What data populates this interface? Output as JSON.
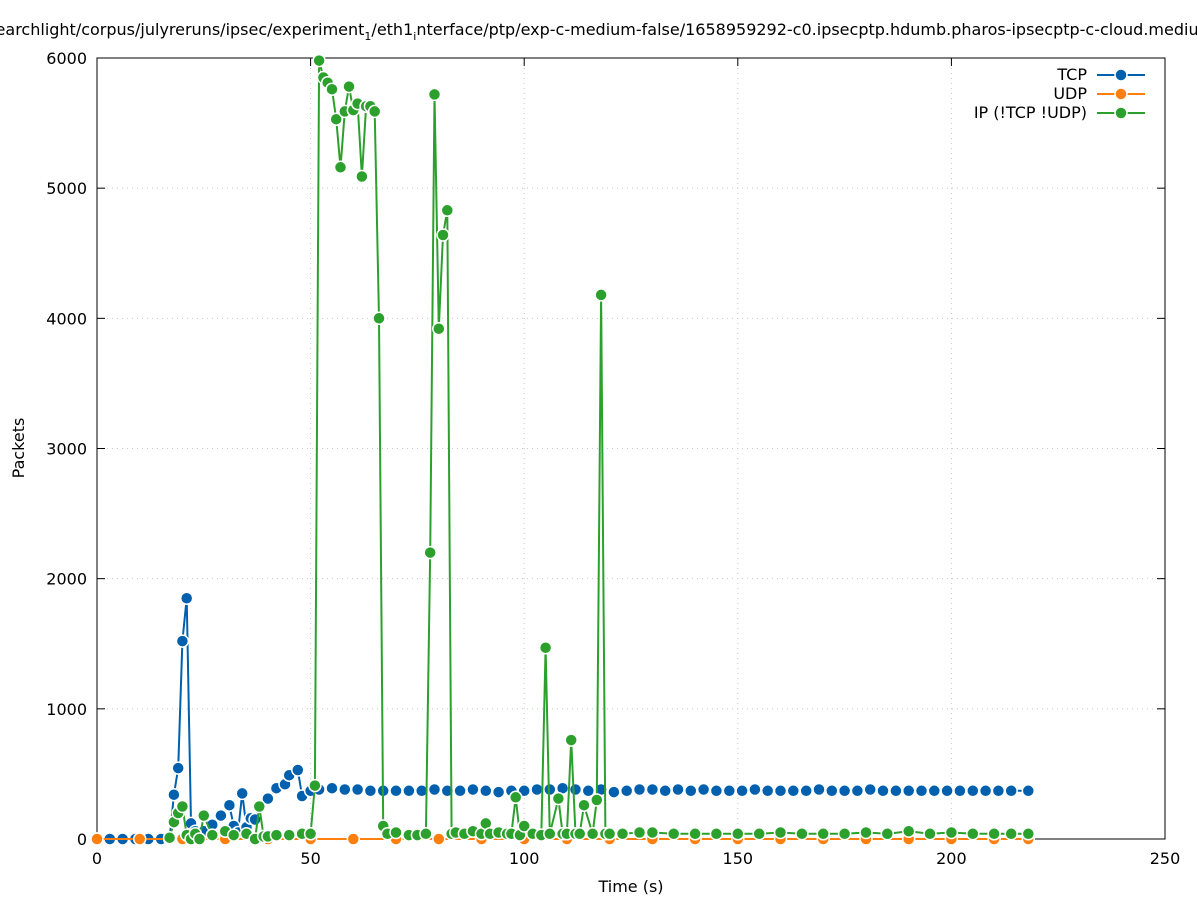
{
  "chart_data": {
    "type": "line",
    "title": "/searchlight/corpus/julyreruns/ipsec/experiment",
    "title_sub": "1",
    "title_tail": "/eth1",
    "title_sub2": "i",
    "title_tail2": "nterface/ptp/exp-c-medium-false/1658959292-c0.ipsecptp.hdumb.pharos-ipsecptp-c-cloud.medium",
    "xlabel": "Time (s)",
    "ylabel": "Packets",
    "xlim": [
      0,
      250
    ],
    "ylim": [
      0,
      6000
    ],
    "xticks": [
      "0",
      "50",
      "100",
      "150",
      "200",
      "250"
    ],
    "yticks": [
      "0",
      "1000",
      "2000",
      "3000",
      "4000",
      "5000",
      "6000"
    ],
    "grid": true,
    "legend_position": "top-right",
    "series": [
      {
        "name": "TCP",
        "color": "#0060ad",
        "points": [
          [
            0,
            0
          ],
          [
            3,
            0
          ],
          [
            6,
            0
          ],
          [
            9,
            0
          ],
          [
            12,
            0
          ],
          [
            15,
            0
          ],
          [
            17,
            0
          ],
          [
            18,
            340
          ],
          [
            19,
            545
          ],
          [
            20,
            1520
          ],
          [
            21,
            1850
          ],
          [
            22,
            120
          ],
          [
            23,
            60
          ],
          [
            24,
            20
          ],
          [
            25,
            60
          ],
          [
            27,
            110
          ],
          [
            29,
            180
          ],
          [
            31,
            260
          ],
          [
            32,
            100
          ],
          [
            33,
            50
          ],
          [
            34,
            350
          ],
          [
            35,
            90
          ],
          [
            36,
            160
          ],
          [
            37,
            150
          ],
          [
            38,
            250
          ],
          [
            40,
            310
          ],
          [
            42,
            390
          ],
          [
            44,
            420
          ],
          [
            45,
            490
          ],
          [
            47,
            530
          ],
          [
            48,
            330
          ],
          [
            50,
            370
          ],
          [
            52,
            380
          ],
          [
            55,
            390
          ],
          [
            58,
            380
          ],
          [
            61,
            380
          ],
          [
            64,
            370
          ],
          [
            67,
            370
          ],
          [
            70,
            370
          ],
          [
            73,
            370
          ],
          [
            76,
            370
          ],
          [
            79,
            380
          ],
          [
            82,
            370
          ],
          [
            85,
            370
          ],
          [
            88,
            380
          ],
          [
            91,
            370
          ],
          [
            94,
            360
          ],
          [
            97,
            370
          ],
          [
            100,
            370
          ],
          [
            103,
            380
          ],
          [
            106,
            380
          ],
          [
            109,
            390
          ],
          [
            112,
            380
          ],
          [
            115,
            370
          ],
          [
            118,
            380
          ],
          [
            121,
            360
          ],
          [
            124,
            370
          ],
          [
            127,
            380
          ],
          [
            130,
            380
          ],
          [
            133,
            370
          ],
          [
            136,
            380
          ],
          [
            139,
            370
          ],
          [
            142,
            380
          ],
          [
            145,
            370
          ],
          [
            148,
            370
          ],
          [
            151,
            370
          ],
          [
            154,
            380
          ],
          [
            157,
            370
          ],
          [
            160,
            370
          ],
          [
            163,
            370
          ],
          [
            166,
            370
          ],
          [
            169,
            380
          ],
          [
            172,
            370
          ],
          [
            175,
            370
          ],
          [
            178,
            370
          ],
          [
            181,
            380
          ],
          [
            184,
            370
          ],
          [
            187,
            370
          ],
          [
            190,
            370
          ],
          [
            193,
            370
          ],
          [
            196,
            370
          ],
          [
            199,
            370
          ],
          [
            202,
            370
          ],
          [
            205,
            370
          ],
          [
            208,
            370
          ],
          [
            211,
            370
          ],
          [
            214,
            370
          ],
          [
            218,
            370
          ]
        ]
      },
      {
        "name": "UDP",
        "color": "#ff7f0e",
        "points": [
          [
            0,
            0
          ],
          [
            10,
            0
          ],
          [
            20,
            0
          ],
          [
            30,
            0
          ],
          [
            40,
            0
          ],
          [
            50,
            0
          ],
          [
            60,
            0
          ],
          [
            70,
            0
          ],
          [
            80,
            0
          ],
          [
            90,
            0
          ],
          [
            100,
            0
          ],
          [
            110,
            0
          ],
          [
            120,
            0
          ],
          [
            130,
            0
          ],
          [
            140,
            0
          ],
          [
            150,
            0
          ],
          [
            160,
            0
          ],
          [
            170,
            0
          ],
          [
            180,
            0
          ],
          [
            190,
            0
          ],
          [
            200,
            0
          ],
          [
            210,
            0
          ],
          [
            218,
            0
          ]
        ]
      },
      {
        "name": "IP (!TCP  !UDP)",
        "color": "#2ca02c",
        "points": [
          [
            17,
            10
          ],
          [
            18,
            130
          ],
          [
            19,
            200
          ],
          [
            20,
            250
          ],
          [
            21,
            30
          ],
          [
            22,
            0
          ],
          [
            23,
            40
          ],
          [
            24,
            0
          ],
          [
            25,
            180
          ],
          [
            27,
            30
          ],
          [
            30,
            60
          ],
          [
            32,
            30
          ],
          [
            35,
            40
          ],
          [
            37,
            0
          ],
          [
            38,
            250
          ],
          [
            39,
            20
          ],
          [
            40,
            20
          ],
          [
            42,
            30
          ],
          [
            45,
            30
          ],
          [
            48,
            40
          ],
          [
            50,
            40
          ],
          [
            51,
            410
          ],
          [
            52,
            5980
          ],
          [
            53,
            5850
          ],
          [
            54,
            5810
          ],
          [
            55,
            5760
          ],
          [
            56,
            5530
          ],
          [
            57,
            5160
          ],
          [
            58,
            5590
          ],
          [
            59,
            5780
          ],
          [
            60,
            5600
          ],
          [
            61,
            5650
          ],
          [
            62,
            5090
          ],
          [
            63,
            5630
          ],
          [
            64,
            5630
          ],
          [
            65,
            5590
          ],
          [
            66,
            4000
          ],
          [
            67,
            100
          ],
          [
            68,
            40
          ],
          [
            70,
            50
          ],
          [
            73,
            30
          ],
          [
            75,
            30
          ],
          [
            77,
            40
          ],
          [
            78,
            2200
          ],
          [
            79,
            5720
          ],
          [
            80,
            3920
          ],
          [
            81,
            4640
          ],
          [
            82,
            4830
          ],
          [
            83,
            40
          ],
          [
            84,
            50
          ],
          [
            86,
            40
          ],
          [
            88,
            60
          ],
          [
            90,
            40
          ],
          [
            91,
            120
          ],
          [
            92,
            40
          ],
          [
            94,
            50
          ],
          [
            96,
            40
          ],
          [
            97,
            40
          ],
          [
            98,
            320
          ],
          [
            99,
            30
          ],
          [
            100,
            100
          ],
          [
            102,
            40
          ],
          [
            104,
            30
          ],
          [
            105,
            1470
          ],
          [
            106,
            40
          ],
          [
            108,
            310
          ],
          [
            109,
            40
          ],
          [
            110,
            40
          ],
          [
            111,
            760
          ],
          [
            112,
            40
          ],
          [
            113,
            40
          ],
          [
            114,
            260
          ],
          [
            116,
            40
          ],
          [
            117,
            300
          ],
          [
            118,
            4180
          ],
          [
            119,
            40
          ],
          [
            120,
            40
          ],
          [
            123,
            40
          ],
          [
            127,
            50
          ],
          [
            130,
            50
          ],
          [
            135,
            40
          ],
          [
            140,
            40
          ],
          [
            145,
            40
          ],
          [
            150,
            40
          ],
          [
            155,
            40
          ],
          [
            160,
            50
          ],
          [
            165,
            40
          ],
          [
            170,
            40
          ],
          [
            175,
            40
          ],
          [
            180,
            50
          ],
          [
            185,
            40
          ],
          [
            190,
            60
          ],
          [
            195,
            40
          ],
          [
            200,
            50
          ],
          [
            205,
            40
          ],
          [
            210,
            40
          ],
          [
            214,
            40
          ],
          [
            218,
            40
          ]
        ]
      }
    ]
  }
}
